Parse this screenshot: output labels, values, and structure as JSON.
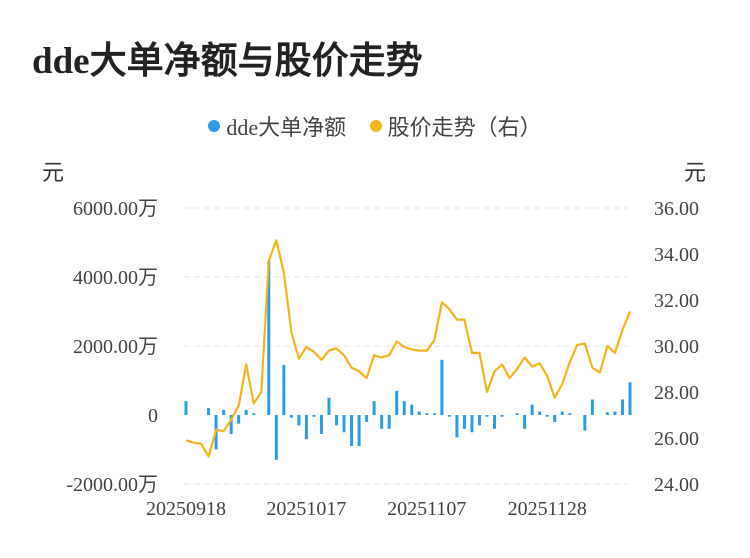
{
  "title": "dde大单净额与股价走势",
  "colors": {
    "bar": "#2e9be8",
    "line": "#f2b51c",
    "grid": "#e6e6e6"
  },
  "chart_data": {
    "type": "bar+line",
    "title": "dde大单净额与股价走势",
    "left_unit": "元",
    "right_unit": "元",
    "legend_position": "top-center",
    "grid": true,
    "y_left": {
      "range": [
        -2000,
        6000
      ],
      "ticks": [
        6000,
        4000,
        2000,
        0,
        -2000
      ],
      "tick_labels": [
        "6000.00万",
        "4000.00万",
        "2000.00万",
        "0",
        "-2000.00万"
      ]
    },
    "y_right": {
      "range": [
        24,
        36
      ],
      "ticks": [
        36,
        34,
        32,
        30,
        28,
        26,
        24
      ],
      "tick_labels": [
        "36.00",
        "34.00",
        "32.00",
        "30.00",
        "28.00",
        "26.00",
        "24.00"
      ]
    },
    "x_tick_labels": [
      {
        "index": 0,
        "label": "20250918"
      },
      {
        "index": 16,
        "label": "20251017"
      },
      {
        "index": 32,
        "label": "20251107"
      },
      {
        "index": 48,
        "label": "20251128"
      }
    ],
    "series": [
      {
        "name": "dde大单净额",
        "type": "bar",
        "axis": "left",
        "values": [
          400,
          0,
          0,
          200,
          -1000,
          150,
          -550,
          -250,
          150,
          50,
          0,
          4450,
          -1300,
          1450,
          -80,
          -300,
          -700,
          -50,
          -550,
          500,
          -300,
          -500,
          -900,
          -900,
          -200,
          400,
          -400,
          -400,
          700,
          400,
          300,
          100,
          50,
          50,
          1600,
          -50,
          -650,
          -400,
          -500,
          -300,
          -50,
          -400,
          -50,
          0,
          50,
          -400,
          300,
          100,
          -50,
          -200,
          100,
          50,
          0,
          -450,
          450,
          0,
          80,
          100,
          450,
          950
        ]
      },
      {
        "name": "股价走势（右）",
        "type": "line",
        "axis": "right",
        "values": [
          25.9,
          25.8,
          25.75,
          25.2,
          26.35,
          26.3,
          26.8,
          27.4,
          29.2,
          27.5,
          28.0,
          33.7,
          34.6,
          33.2,
          30.6,
          29.45,
          29.95,
          29.75,
          29.4,
          29.8,
          29.9,
          29.6,
          29.05,
          28.9,
          28.6,
          29.6,
          29.5,
          29.6,
          30.2,
          29.95,
          29.85,
          29.8,
          29.8,
          30.25,
          31.9,
          31.6,
          31.15,
          31.15,
          29.7,
          29.7,
          28.0,
          28.9,
          29.2,
          28.6,
          29.0,
          29.5,
          29.1,
          29.25,
          28.7,
          27.75,
          28.35,
          29.3,
          30.05,
          30.1,
          29.05,
          28.85,
          30.0,
          29.7,
          30.7,
          31.5
        ]
      }
    ]
  }
}
